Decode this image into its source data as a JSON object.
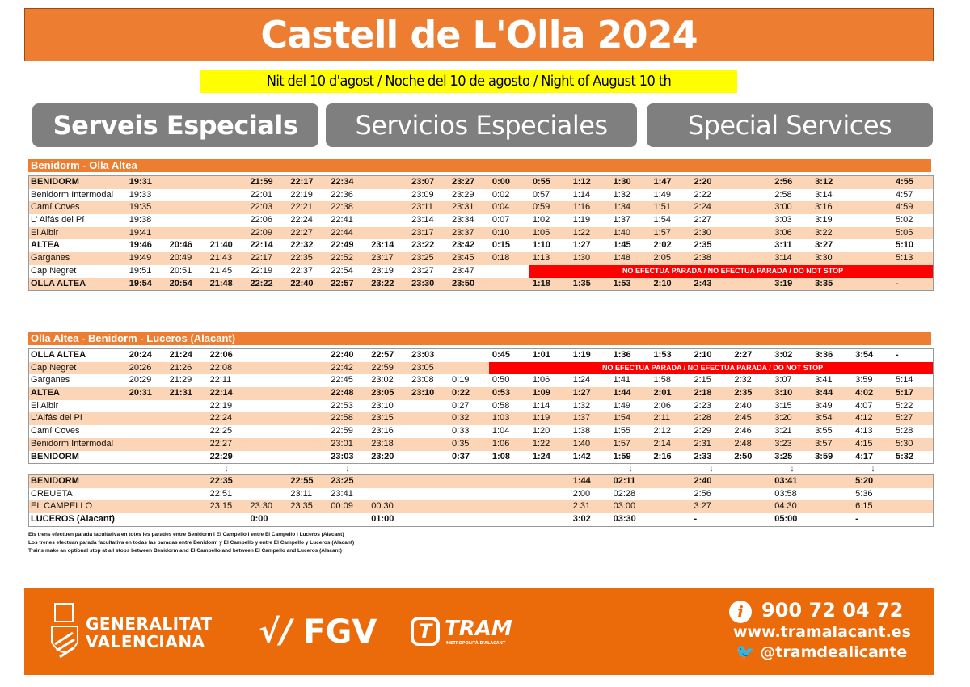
{
  "header": {
    "title": "Castell de L'Olla 2024",
    "subtitle": "Nit del 10 d'agost / Noche del 10 de agosto / Night of August 10 th",
    "labels": [
      "Serveis Especials",
      "Servicios Especiales",
      "Special Services"
    ]
  },
  "no_stop_text": "NO EFECTUA PARADA / NO EFECTUA PARADA / DO NOT STOP",
  "table1": {
    "title": "Benidorm - Olla Altea",
    "rows": [
      {
        "name": "BENIDORM",
        "bold": true,
        "times": [
          "19:31",
          "",
          "",
          "21:59",
          "22:17",
          "22:34",
          "",
          "23:07",
          "23:27",
          "0:00",
          "0:55",
          "1:12",
          "1:30",
          "1:47",
          "2:20",
          "",
          "2:56",
          "3:12",
          "",
          "4:55"
        ]
      },
      {
        "name": "Benidorm Intermodal",
        "times": [
          "19:33",
          "",
          "",
          "22:01",
          "22:19",
          "22:36",
          "",
          "23:09",
          "23:29",
          "0:02",
          "0:57",
          "1:14",
          "1:32",
          "1:49",
          "2:22",
          "",
          "2:58",
          "3:14",
          "",
          "4:57"
        ]
      },
      {
        "name": "Camí Coves",
        "times": [
          "19:35",
          "",
          "",
          "22:03",
          "22:21",
          "22:38",
          "",
          "23:11",
          "23:31",
          "0:04",
          "0:59",
          "1:16",
          "1:34",
          "1:51",
          "2:24",
          "",
          "3:00",
          "3:16",
          "",
          "4:59"
        ]
      },
      {
        "name": "L' Alfás del Pí",
        "times": [
          "19:38",
          "",
          "",
          "22:06",
          "22:24",
          "22:41",
          "",
          "23:14",
          "23:34",
          "0:07",
          "1:02",
          "1:19",
          "1:37",
          "1:54",
          "2:27",
          "",
          "3:03",
          "3:19",
          "",
          "5:02"
        ]
      },
      {
        "name": "El Albir",
        "times": [
          "19:41",
          "",
          "",
          "22:09",
          "22:27",
          "22:44",
          "",
          "23:17",
          "23:37",
          "0:10",
          "1:05",
          "1:22",
          "1:40",
          "1:57",
          "2:30",
          "",
          "3:06",
          "3:22",
          "",
          "5:05"
        ]
      },
      {
        "name": "ALTEA",
        "bold": true,
        "times": [
          "19:46",
          "20:46",
          "21:40",
          "22:14",
          "22:32",
          "22:49",
          "23:14",
          "23:22",
          "23:42",
          "0:15",
          "1:10",
          "1:27",
          "1:45",
          "2:02",
          "2:35",
          "",
          "3:11",
          "3:27",
          "",
          "5:10"
        ]
      },
      {
        "name": "Garganes",
        "times": [
          "19:49",
          "20:49",
          "21:43",
          "22:17",
          "22:35",
          "22:52",
          "23:17",
          "23:25",
          "23:45",
          "0:18",
          "1:13",
          "1:30",
          "1:48",
          "2:05",
          "2:38",
          "",
          "3:14",
          "3:30",
          "",
          "5:13"
        ]
      },
      {
        "name": "Cap Negret",
        "no_stop_from": 10,
        "times": [
          "19:51",
          "20:51",
          "21:45",
          "22:19",
          "22:37",
          "22:54",
          "23:19",
          "23:27",
          "23:47",
          ""
        ]
      },
      {
        "name": "OLLA ALTEA",
        "bold": true,
        "times": [
          "19:54",
          "20:54",
          "21:48",
          "22:22",
          "22:40",
          "22:57",
          "23:22",
          "23:30",
          "23:50",
          "",
          "1:18",
          "1:35",
          "1:53",
          "2:10",
          "2:43",
          "",
          "3:19",
          "3:35",
          "",
          "-"
        ]
      }
    ]
  },
  "table2": {
    "title": "Olla Altea - Benidorm - Luceros (Alacant)",
    "rows": [
      {
        "name": "OLLA ALTEA",
        "bold": true,
        "times": [
          "20:24",
          "21:24",
          "22:06",
          "",
          "",
          "22:40",
          "22:57",
          "23:03",
          "",
          "0:45",
          "1:01",
          "1:19",
          "1:36",
          "1:53",
          "2:10",
          "2:27",
          "3:02",
          "3:36",
          "3:54",
          "-"
        ]
      },
      {
        "name": "Cap Negret",
        "no_stop_from": 9,
        "times": [
          "20:26",
          "21:26",
          "22:08",
          "",
          "",
          "22:42",
          "22:59",
          "23:05",
          ""
        ]
      },
      {
        "name": "Garganes",
        "times": [
          "20:29",
          "21:29",
          "22:11",
          "",
          "",
          "22:45",
          "23:02",
          "23:08",
          "0:19",
          "0:50",
          "1:06",
          "1:24",
          "1:41",
          "1:58",
          "2:15",
          "2:32",
          "3:07",
          "3:41",
          "3:59",
          "5:14"
        ]
      },
      {
        "name": "ALTEA",
        "bold": true,
        "times": [
          "20:31",
          "21:31",
          "22:14",
          "",
          "",
          "22:48",
          "23:05",
          "23:10",
          "0:22",
          "0:53",
          "1:09",
          "1:27",
          "1:44",
          "2:01",
          "2:18",
          "2:35",
          "3:10",
          "3:44",
          "4:02",
          "5:17"
        ]
      },
      {
        "name": "El Albir",
        "times": [
          "",
          "",
          "22:19",
          "",
          "",
          "22:53",
          "23:10",
          "",
          "0:27",
          "0:58",
          "1:14",
          "1:32",
          "1:49",
          "2:06",
          "2:23",
          "2:40",
          "3:15",
          "3:49",
          "4:07",
          "5:22"
        ]
      },
      {
        "name": "L'Alfás del Pí",
        "times": [
          "",
          "",
          "22:24",
          "",
          "",
          "22:58",
          "23:15",
          "",
          "0:32",
          "1:03",
          "1:19",
          "1:37",
          "1:54",
          "2:11",
          "2:28",
          "2:45",
          "3:20",
          "3:54",
          "4:12",
          "5:27"
        ]
      },
      {
        "name": "Camí Coves",
        "times": [
          "",
          "",
          "22:25",
          "",
          "",
          "22:59",
          "23:16",
          "",
          "0:33",
          "1:04",
          "1:20",
          "1:38",
          "1:55",
          "2:12",
          "2:29",
          "2:46",
          "3:21",
          "3:55",
          "4:13",
          "5:28"
        ]
      },
      {
        "name": "Benidorm Intermodal",
        "times": [
          "",
          "",
          "22:27",
          "",
          "",
          "23:01",
          "23:18",
          "",
          "0:35",
          "1:06",
          "1:22",
          "1:40",
          "1:57",
          "2:14",
          "2:31",
          "2:48",
          "3:23",
          "3:57",
          "4:15",
          "5:30"
        ]
      },
      {
        "name": "BENIDORM",
        "bold": true,
        "times": [
          "",
          "",
          "22:29",
          "",
          "",
          "23:03",
          "23:20",
          "",
          "0:37",
          "1:08",
          "1:24",
          "1:42",
          "1:59",
          "2:16",
          "2:33",
          "2:50",
          "3:25",
          "3:59",
          "4:17",
          "5:32"
        ]
      }
    ]
  },
  "transfer": {
    "arrow_columns": [
      2,
      5,
      12,
      14,
      16,
      18
    ],
    "rows": [
      {
        "name": "BENIDORM",
        "bold": true,
        "times": [
          "",
          "",
          "22:35",
          "",
          "22:55",
          "23:25",
          "",
          "",
          "",
          "",
          "",
          "1:44",
          "02:11",
          "",
          "2:40",
          "",
          "03:41",
          "",
          "5:20",
          ""
        ]
      },
      {
        "name": "CREUETA",
        "times": [
          "",
          "",
          "22:51",
          "",
          "23:11",
          "23:41",
          "",
          "",
          "",
          "",
          "",
          "2:00",
          "02:28",
          "",
          "2:56",
          "",
          "03:58",
          "",
          "5:36",
          ""
        ]
      },
      {
        "name": "EL CAMPELLO",
        "times": [
          "",
          "",
          "23:15",
          "23:30",
          "23:35",
          "00:09",
          "00:30",
          "",
          "",
          "",
          "",
          "2:31",
          "03:00",
          "",
          "3:27",
          "",
          "04:30",
          "",
          "6:15",
          ""
        ]
      },
      {
        "name": "LUCEROS (Alacant)",
        "bold": true,
        "times": [
          "",
          "",
          "",
          "0:00",
          "",
          "",
          "01:00",
          "",
          "",
          "",
          "",
          "3:02",
          "03:30",
          "",
          "-",
          "",
          "05:00",
          "",
          "-",
          ""
        ]
      }
    ]
  },
  "notes": [
    "Els trens efectuen parada facultativa en totes les parades entre Benidorm i El Campello i entre El Campello i Luceros (Alacant)",
    "Los trenes efectuan parada facultativa en todas las paradas entre Benidorm y El Campello y entre El Campello y Luceros (Alacant)",
    "Trains make an optional stop at all stops between Benidorm and El Campello and between El Campello and Luceros (Alacant)"
  ],
  "footer": {
    "gv_line1": "GENERALITAT",
    "gv_line2": "VALENCIANA",
    "fgv": "FGV",
    "tram": "TRAM",
    "tram_sub": "METROPOLITÀ D'ALACANT",
    "phone": "900 72 04 72",
    "web": "www.tramalacant.es",
    "twitter": "@tramdealicante"
  },
  "colors": {
    "orange": "#ED7D31",
    "footer_orange": "#EB6A0A",
    "row_peach": "#FBD5B5",
    "no_stop_red": "#FF0000",
    "highlight_yellow": "#FFFF00",
    "pill_gray": "#7F7F7F"
  }
}
